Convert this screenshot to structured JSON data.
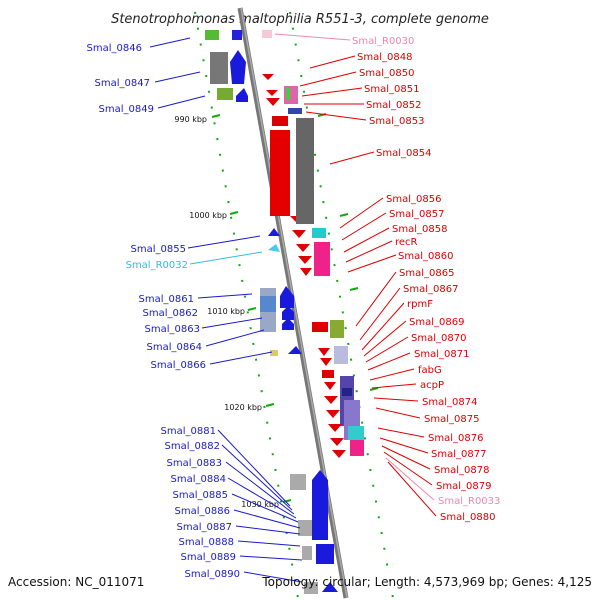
{
  "title": "Stenotrophomonas maltophilia R551-3, complete genome",
  "accession": "Accession: NC_011071",
  "topology": "Topology: circular; Length: 4,573,969 bp; Genes: 4,125",
  "ticks": [
    "990 kbp",
    "1000 kbp",
    "1010 kbp",
    "1020 kbp",
    "1030 kbp"
  ],
  "colors": {
    "left_genes": "#1a1acc",
    "right_genes": "#dd0000",
    "rna": "#ee88aa",
    "left_rna": "#33bbdd"
  },
  "left_labels": [
    "Smal_0846",
    "Smal_0847",
    "Smal_0849",
    "Smal_0855",
    "Smal_R0032",
    "Smal_0861",
    "Smal_0862",
    "Smal_0863",
    "Smal_0864",
    "Smal_0866",
    "Smal_0881",
    "Smal_0882",
    "Smal_0883",
    "Smal_0884",
    "Smal_0885",
    "Smal_0886",
    "Smal_0887",
    "Smal_0888",
    "Smal_0889",
    "Smal_0890"
  ],
  "right_labels": [
    "Smal_R0030",
    "Smal_0848",
    "Smal_0850",
    "Smal_0851",
    "Smal_0852",
    "Smal_0853",
    "Smal_0854",
    "Smal_0856",
    "Smal_0857",
    "Smal_0858",
    "recR",
    "Smal_0860",
    "Smal_0865",
    "Smal_0867",
    "rpmF",
    "Smal_0869",
    "Smal_0870",
    "Smal_0871",
    "fabG",
    "acpP",
    "Smal_0874",
    "Smal_0875",
    "Smal_0876",
    "Smal_0877",
    "Smal_0878",
    "Smal_0879",
    "Smal_R0033",
    "Smal_0880"
  ]
}
